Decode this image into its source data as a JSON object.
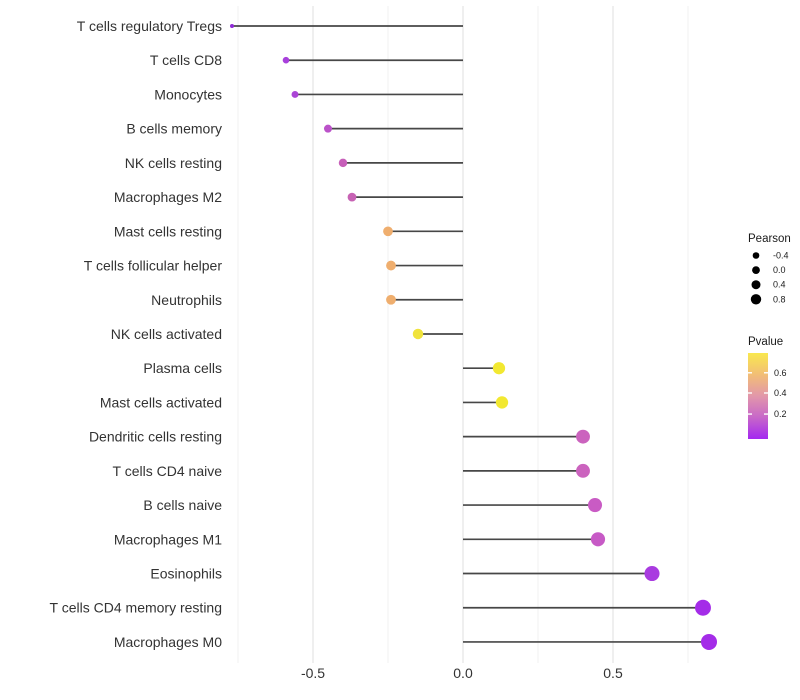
{
  "figure": {
    "background": "#FFFFFF"
  },
  "chart_data": {
    "type": "lollipop",
    "orientation": "horizontal",
    "title": "",
    "xlabel": "",
    "ylabel": "",
    "x_tick_labels": [
      "-0.5",
      "0.0",
      "0.5"
    ],
    "x_tick_values": [
      -0.5,
      0.0,
      0.5
    ],
    "x_minor_gridlines": [
      -0.75,
      -0.25,
      0.25,
      0.75
    ],
    "xlim": [
      -0.783,
      0.89
    ],
    "stem_origin": 0,
    "grid": "vertical gridlines only, light gray, no panel border",
    "legend_position": "right",
    "categories": [
      "T cells regulatory  Tregs",
      "T cells CD8",
      "Monocytes",
      "B cells memory",
      "NK cells resting",
      "Macrophages M2",
      "Mast cells resting",
      "T cells follicular helper",
      "Neutrophils",
      "NK cells activated",
      "Plasma cells",
      "Mast cells activated",
      "Dendritic cells resting",
      "T cells CD4 naive",
      "B cells naive",
      "Macrophages M1",
      "Eosinophils",
      "T cells CD4 memory resting",
      "Macrophages M0"
    ],
    "series": [
      {
        "name": "Pearson",
        "values": [
          -0.77,
          -0.59,
          -0.56,
          -0.45,
          -0.4,
          -0.37,
          -0.25,
          -0.24,
          -0.24,
          -0.15,
          0.12,
          0.13,
          0.4,
          0.4,
          0.44,
          0.45,
          0.63,
          0.8,
          0.82
        ]
      }
    ],
    "point_colors": [
      "#8F2BD6",
      "#A840DC",
      "#AB45D6",
      "#BB52C9",
      "#C75FB9",
      "#C763B4",
      "#EFAE6E",
      "#EFAE6E",
      "#EFAE6E",
      "#F0E33C",
      "#F2E831",
      "#F2E831",
      "#CB63BE",
      "#CB63BE",
      "#C95BC4",
      "#C75AC6",
      "#A93BE0",
      "#A42CE8",
      "#A42CE8"
    ],
    "size_scale": {
      "aesthetic": "Pearson",
      "domain": [
        -0.77,
        0.82
      ]
    },
    "legend": {
      "size": {
        "title": "Pearson",
        "entries": [
          {
            "label": "-0.4",
            "diameter": 6.6
          },
          {
            "label": "0.0",
            "diameter": 7.8
          },
          {
            "label": "0.4",
            "diameter": 9.0
          },
          {
            "label": "0.8",
            "diameter": 10.4
          }
        ]
      },
      "color": {
        "title": "Pvalue",
        "tick_labels": [
          {
            "label": "0.6",
            "offset": 0.23
          },
          {
            "label": "0.4",
            "offset": 0.465
          },
          {
            "label": "0.2",
            "offset": 0.71
          }
        ],
        "gradient": [
          {
            "offset": 0,
            "color": "#F9E84E"
          },
          {
            "offset": 0.25,
            "color": "#F2BE76"
          },
          {
            "offset": 0.5,
            "color": "#E297AA"
          },
          {
            "offset": 0.75,
            "color": "#C767C9"
          },
          {
            "offset": 1,
            "color": "#A428F0"
          }
        ]
      }
    },
    "colors": {
      "stem": "#474747",
      "axis_text": "#333333",
      "grid_major": "#E4E4E4",
      "grid_minor": "#F2F2F2",
      "legend_dot": "#000000",
      "legend_text": "#1A1A1A"
    }
  }
}
